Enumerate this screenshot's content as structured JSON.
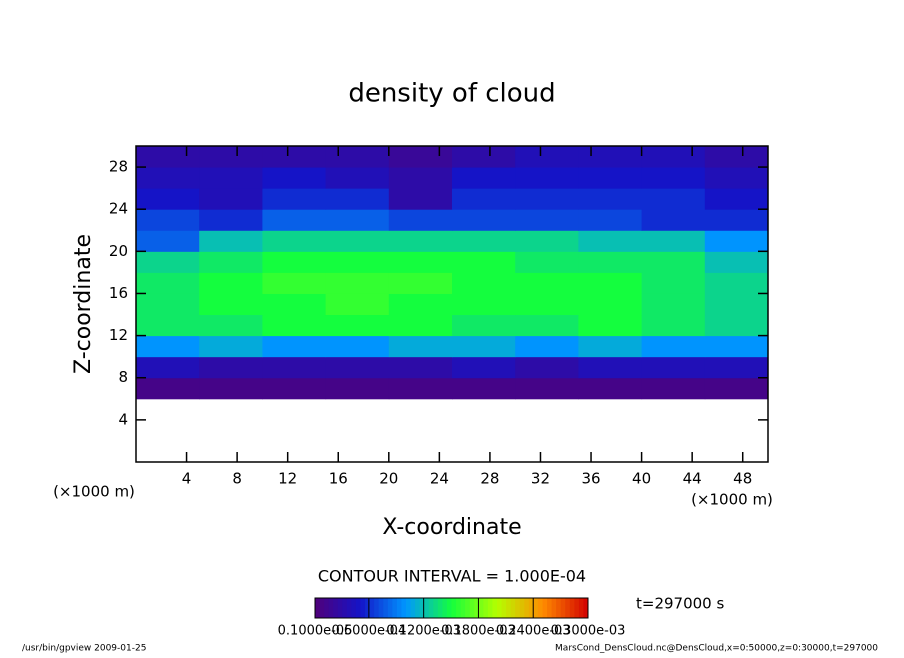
{
  "chart_data": {
    "type": "heatmap",
    "title": "density of cloud",
    "xlabel": "X-coordinate",
    "ylabel": "Z-coordinate",
    "xunit": "(×1000 m)",
    "yunit": "(×1000 m)",
    "xlim": [
      0,
      50
    ],
    "ylim": [
      0,
      30
    ],
    "xticks": [
      4,
      8,
      12,
      16,
      20,
      24,
      28,
      32,
      36,
      40,
      44,
      48
    ],
    "yticks": [
      4,
      8,
      12,
      16,
      20,
      24,
      28
    ],
    "x_bins": [
      0,
      5,
      10,
      15,
      20,
      25,
      30,
      35,
      40,
      45,
      50
    ],
    "z_bins": [
      0,
      2,
      4,
      6,
      8,
      10,
      12,
      14,
      16,
      18,
      20,
      22,
      24,
      26,
      28,
      30
    ],
    "values": [
      [
        null,
        null,
        null,
        null,
        null,
        null,
        null,
        null,
        null,
        null
      ],
      [
        null,
        null,
        null,
        null,
        null,
        null,
        null,
        null,
        null,
        null
      ],
      [
        null,
        null,
        null,
        null,
        null,
        null,
        null,
        null,
        null,
        null
      ],
      [
        1e-05,
        1e-05,
        1e-05,
        1e-05,
        1e-05,
        1e-05,
        1e-05,
        1e-05,
        1e-05,
        1e-05
      ],
      [
        4e-05,
        3e-05,
        3e-05,
        3e-05,
        3e-05,
        4e-05,
        3e-05,
        4e-05,
        4e-05,
        4e-05
      ],
      [
        0.0001,
        0.00011,
        0.0001,
        0.0001,
        0.00011,
        0.00011,
        0.0001,
        0.00011,
        0.0001,
        0.0001
      ],
      [
        0.00014,
        0.00014,
        0.00015,
        0.00015,
        0.00015,
        0.00014,
        0.00014,
        0.00015,
        0.00014,
        0.00013
      ],
      [
        0.00014,
        0.00015,
        0.00015,
        0.00016,
        0.00015,
        0.00015,
        0.00015,
        0.00015,
        0.00014,
        0.00013
      ],
      [
        0.00014,
        0.00015,
        0.00016,
        0.00016,
        0.00016,
        0.00015,
        0.00015,
        0.00015,
        0.00014,
        0.00013
      ],
      [
        0.00013,
        0.00014,
        0.00015,
        0.00015,
        0.00015,
        0.00015,
        0.00014,
        0.00014,
        0.00014,
        0.00012
      ],
      [
        8e-05,
        0.00012,
        0.00013,
        0.00013,
        0.00013,
        0.00013,
        0.00013,
        0.00012,
        0.00012,
        0.0001
      ],
      [
        7e-05,
        6e-05,
        8e-05,
        8e-05,
        7e-05,
        7e-05,
        7e-05,
        7e-05,
        6e-05,
        6e-05
      ],
      [
        5e-05,
        4e-05,
        6e-05,
        6e-05,
        3e-05,
        6e-05,
        6e-05,
        6e-05,
        6e-05,
        5e-05
      ],
      [
        4e-05,
        4e-05,
        5e-05,
        4e-05,
        3e-05,
        5e-05,
        5e-05,
        5e-05,
        5e-05,
        4e-05
      ],
      [
        3e-05,
        3e-05,
        3e-05,
        3e-05,
        2e-05,
        3e-05,
        4e-05,
        4e-05,
        4e-05,
        3e-05
      ]
    ],
    "colormap": [
      "#50007a",
      "#1414c8",
      "#0096ff",
      "#14ff3c",
      "#b4ff00",
      "#ff8c00",
      "#d20000"
    ],
    "clim": [
      1e-06,
      0.0003
    ],
    "cticks": [
      {
        "value": 1e-06,
        "label": "0.1000e-05"
      },
      {
        "value": 6e-05,
        "label": "0.6000e-04"
      },
      {
        "value": 0.00012,
        "label": "0.1200e-03"
      },
      {
        "value": 0.00018,
        "label": "0.1800e-03"
      },
      {
        "value": 0.00024,
        "label": "0.2400e-03"
      },
      {
        "value": 0.0003,
        "label": "0.3000e-03"
      }
    ],
    "contour_note": "CONTOUR INTERVAL = 1.000E-04",
    "time_label": "t=297000 s",
    "footer_left": "/usr/bin/gpview  2009-01-25",
    "footer_right": "MarsCond_DensCloud.nc@DensCloud,x=0:50000,z=0:30000,t=297000"
  }
}
